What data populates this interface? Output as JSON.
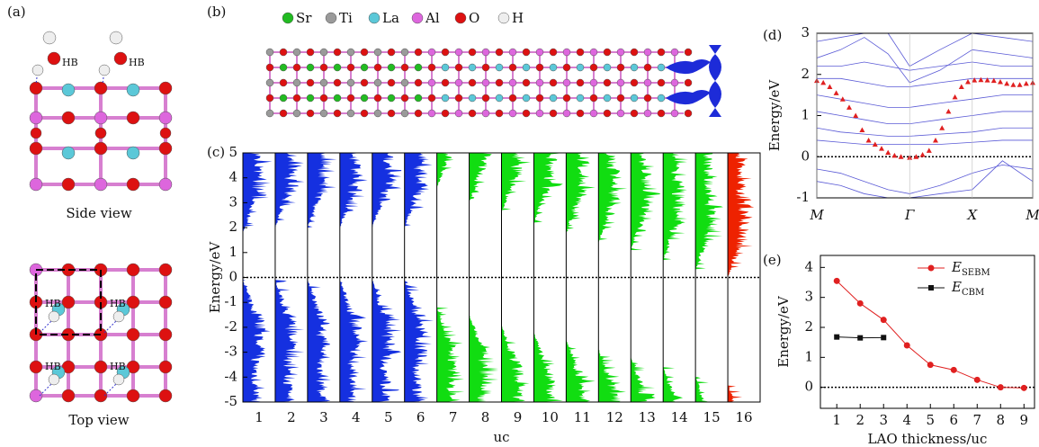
{
  "panel_a": {
    "label": "(a)",
    "hb_label": "HB",
    "side_view": "Side view",
    "top_view": "Top view"
  },
  "panel_b": {
    "label": "(b)",
    "legend": [
      {
        "label": "Sr",
        "color": "#22bb22"
      },
      {
        "label": "Ti",
        "color": "#9a9a9a"
      },
      {
        "label": "La",
        "color": "#5bc8d8"
      },
      {
        "label": "Al",
        "color": "#dd66dd"
      },
      {
        "label": "O",
        "color": "#dd1111"
      },
      {
        "label": "H",
        "color": "#eeeeee"
      }
    ]
  },
  "chart_data": [
    {
      "type": "dos",
      "label": "(c)",
      "ylabel": "Energy/eV",
      "xlabel": "uc",
      "categories": [
        1,
        2,
        3,
        4,
        5,
        6,
        7,
        8,
        9,
        10,
        11,
        12,
        13,
        14,
        15,
        16
      ],
      "colors": [
        "#1530e0",
        "#1530e0",
        "#1530e0",
        "#1530e0",
        "#1530e0",
        "#1530e0",
        "#11dd11",
        "#11dd11",
        "#11dd11",
        "#11dd11",
        "#11dd11",
        "#11dd11",
        "#11dd11",
        "#11dd11",
        "#11dd11",
        "#ee2200"
      ],
      "conduction_edge": [
        1.8,
        2.0,
        2.0,
        2.0,
        2.0,
        2.0,
        3.6,
        3.0,
        2.6,
        2.2,
        1.8,
        1.4,
        1.1,
        0.7,
        0.3,
        0.0
      ],
      "valence_edge": [
        -0.1,
        -0.1,
        -0.1,
        -0.1,
        -0.1,
        -0.1,
        -1.2,
        -1.5,
        -1.9,
        -2.2,
        -2.5,
        -2.9,
        -3.2,
        -3.6,
        -4.0,
        -4.3
      ],
      "ylim": [
        -5,
        5
      ],
      "yticks": [
        -5,
        -4,
        -3,
        -2,
        -1,
        0,
        1,
        2,
        3,
        4,
        5
      ],
      "fermi_level": 0
    },
    {
      "type": "bands",
      "label": "(d)",
      "ylabel": "Energy/eV",
      "xlim": [
        0,
        1
      ],
      "xticks": [
        {
          "value": 0,
          "label": "M"
        },
        {
          "value": 0.43,
          "label": "Γ"
        },
        {
          "value": 0.72,
          "label": "X"
        },
        {
          "value": 1,
          "label": "M"
        }
      ],
      "ylim": [
        -1,
        3
      ],
      "yticks": [
        -1,
        0,
        1,
        2,
        3
      ],
      "fermi_level": 0,
      "bands": {
        "color": "#5a5ad6",
        "x": [
          0,
          0.11,
          0.22,
          0.33,
          0.43,
          0.57,
          0.72,
          0.86,
          1
        ],
        "values": [
          [
            2.8,
            2.9,
            3.0,
            3.0,
            2.2,
            2.6,
            3.0,
            2.9,
            2.8
          ],
          [
            2.4,
            2.6,
            2.9,
            2.5,
            1.8,
            2.1,
            2.6,
            2.5,
            2.4
          ],
          [
            2.2,
            2.2,
            2.3,
            2.2,
            2.1,
            2.2,
            2.3,
            2.2,
            2.2
          ],
          [
            1.9,
            1.9,
            1.8,
            1.7,
            1.7,
            1.8,
            1.9,
            1.9,
            1.9
          ],
          [
            1.5,
            1.4,
            1.3,
            1.2,
            1.2,
            1.3,
            1.4,
            1.5,
            1.5
          ],
          [
            1.1,
            1.0,
            0.9,
            0.8,
            0.8,
            0.9,
            1.0,
            1.1,
            1.1
          ],
          [
            0.7,
            0.6,
            0.55,
            0.5,
            0.5,
            0.55,
            0.6,
            0.7,
            0.7
          ],
          [
            0.4,
            0.35,
            0.3,
            0.3,
            0.3,
            0.3,
            0.35,
            0.4,
            0.4
          ],
          [
            -0.3,
            -0.4,
            -0.6,
            -0.8,
            -0.9,
            -0.7,
            -0.4,
            -0.2,
            -0.3
          ],
          [
            -0.6,
            -0.7,
            -0.9,
            -1.0,
            -1.0,
            -0.9,
            -0.8,
            -0.1,
            -0.6
          ]
        ]
      },
      "series": [
        {
          "color": "#e02020",
          "x": [
            0,
            0.03,
            0.06,
            0.09,
            0.12,
            0.15,
            0.18,
            0.21,
            0.24,
            0.27,
            0.3,
            0.33,
            0.36,
            0.39,
            0.43,
            0.46,
            0.49,
            0.52,
            0.55,
            0.58,
            0.61,
            0.64,
            0.67,
            0.7,
            0.73,
            0.76,
            0.79,
            0.82,
            0.85,
            0.88,
            0.91,
            0.94,
            0.97,
            1.0
          ],
          "values": [
            1.85,
            1.8,
            1.7,
            1.55,
            1.4,
            1.2,
            1.0,
            0.65,
            0.4,
            0.3,
            0.2,
            0.1,
            0.03,
            0.0,
            -0.02,
            0.0,
            0.05,
            0.15,
            0.4,
            0.7,
            1.1,
            1.45,
            1.7,
            1.82,
            1.86,
            1.87,
            1.86,
            1.85,
            1.82,
            1.78,
            1.75,
            1.75,
            1.78,
            1.8
          ]
        }
      ]
    },
    {
      "type": "line",
      "label": "(e)",
      "ylabel": "Energy/eV",
      "xlabel": "LAO thickness/uc",
      "x": [
        1,
        2,
        3,
        4,
        5,
        6,
        7,
        8,
        9
      ],
      "xlim": [
        0.3,
        9.45
      ],
      "xticks": [
        1,
        2,
        3,
        4,
        5,
        6,
        7,
        8,
        9
      ],
      "ylim": [
        -0.7,
        4.4
      ],
      "yticks": [
        0,
        1,
        2,
        3,
        4
      ],
      "fermi_level": 0,
      "legend": "upper right",
      "series": [
        {
          "name": "E",
          "subscript": "SEBM",
          "color": "#e02020",
          "marker": "circle",
          "values": [
            3.55,
            2.8,
            2.25,
            1.4,
            0.75,
            0.58,
            0.25,
            0.0,
            -0.02
          ]
        },
        {
          "name": "E",
          "subscript": "CBM",
          "color": "#111111",
          "marker": "square",
          "values": [
            1.68,
            1.65,
            1.66,
            null,
            null,
            null,
            null,
            null,
            null
          ]
        }
      ]
    }
  ]
}
